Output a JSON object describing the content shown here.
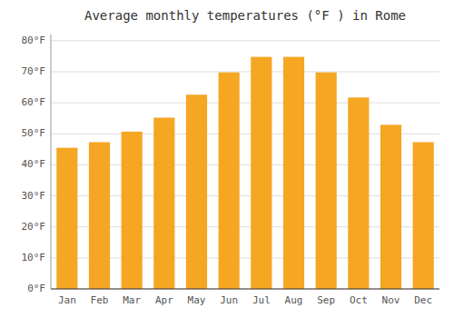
{
  "chart_data": {
    "type": "bar",
    "title": "Average monthly temperatures (°F ) in Rome",
    "categories": [
      "Jan",
      "Feb",
      "Mar",
      "Apr",
      "May",
      "Jun",
      "Jul",
      "Aug",
      "Sep",
      "Oct",
      "Nov",
      "Dec"
    ],
    "values": [
      45.5,
      47.3,
      50.7,
      55.2,
      62.6,
      69.8,
      74.8,
      74.8,
      69.8,
      61.7,
      52.9,
      47.3
    ],
    "color": "#F5A623",
    "ylim": [
      0,
      82
    ],
    "yticks": [
      {
        "value": 0,
        "label": "0°F"
      },
      {
        "value": 10,
        "label": "10°F"
      },
      {
        "value": 20,
        "label": "20°F"
      },
      {
        "value": 30,
        "label": "30°F"
      },
      {
        "value": 40,
        "label": "40°F"
      },
      {
        "value": 50,
        "label": "50°F"
      },
      {
        "value": 60,
        "label": "60°F"
      },
      {
        "value": 70,
        "label": "70°F"
      },
      {
        "value": 80,
        "label": "80°F"
      }
    ],
    "grid": true
  }
}
